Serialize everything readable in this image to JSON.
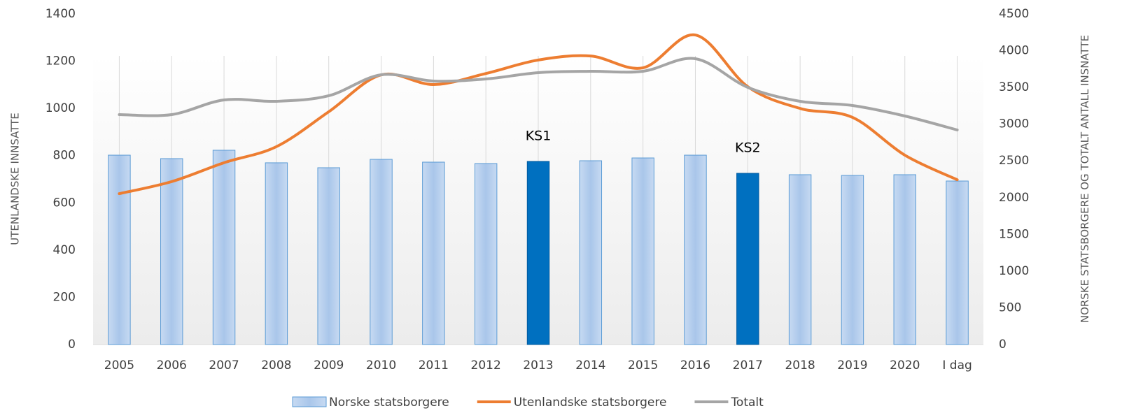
{
  "chart_data": {
    "type": "bar",
    "categories": [
      "2005",
      "2006",
      "2007",
      "2008",
      "2009",
      "2010",
      "2011",
      "2012",
      "2013",
      "2014",
      "2015",
      "2016",
      "2017",
      "2018",
      "2019",
      "2020",
      "I dag"
    ],
    "y_label": "UTENLANDSKE INNSATTE",
    "y2_label": "NORSKE STATSBORGERE OG TOTALT ANTALL INSNATTE",
    "ylim": [
      0,
      1400
    ],
    "yticks": [
      0,
      200,
      400,
      600,
      800,
      1000,
      1200,
      1400
    ],
    "y2lim": [
      0,
      4500
    ],
    "y2ticks": [
      0,
      500,
      1000,
      1500,
      2000,
      2500,
      3000,
      3500,
      4000,
      4500
    ],
    "grid": "x",
    "annotations": [
      {
        "text": "KS1",
        "category": 8
      },
      {
        "text": "KS2",
        "category": 12
      }
    ],
    "series": [
      {
        "name": "Norske statsborgere",
        "type": "bar",
        "axis": "y2",
        "color": "#a9c6ea",
        "highlight_color": "#0070c0",
        "highlight": [
          8,
          12
        ],
        "values": [
          2578,
          2531,
          2645,
          2474,
          2407,
          2521,
          2483,
          2464,
          2493,
          2502,
          2540,
          2578,
          2331,
          2312,
          2302,
          2312,
          2226
        ]
      },
      {
        "name": "Utenlandske statsborgere",
        "type": "line",
        "axis": "y",
        "color": "#ed7d31",
        "values": [
          639,
          690,
          770,
          838,
          986,
          1142,
          1101,
          1148,
          1205,
          1222,
          1172,
          1311,
          1092,
          1000,
          962,
          802,
          698
        ]
      },
      {
        "name": "Totalt",
        "type": "line",
        "axis": "y2",
        "color": "#a5a5a5",
        "values": [
          3130,
          3130,
          3330,
          3311,
          3387,
          3672,
          3587,
          3615,
          3701,
          3720,
          3720,
          3891,
          3501,
          3311,
          3254,
          3111,
          2921
        ]
      }
    ]
  }
}
